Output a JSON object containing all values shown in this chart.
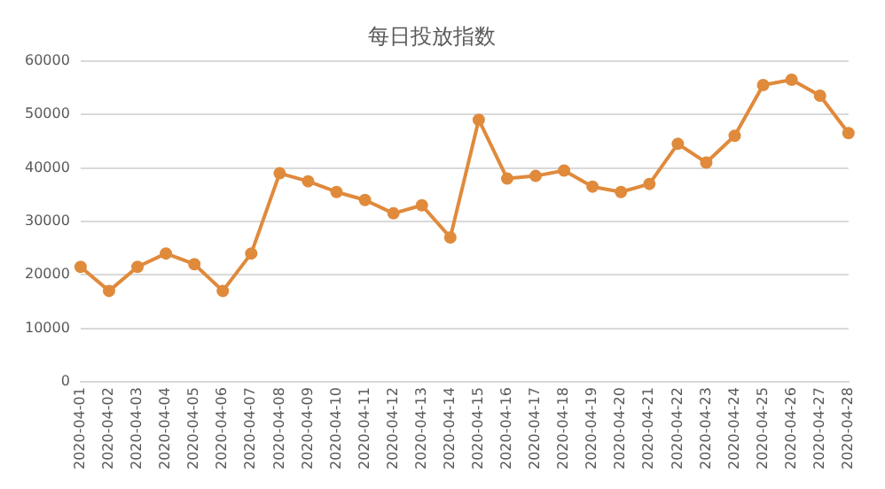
{
  "chart_data": {
    "type": "line",
    "title": "每日投放指数",
    "categories": [
      "2020-04-01",
      "2020-04-02",
      "2020-04-03",
      "2020-04-04",
      "2020-04-05",
      "2020-04-06",
      "2020-04-07",
      "2020-04-08",
      "2020-04-09",
      "2020-04-10",
      "2020-04-11",
      "2020-04-12",
      "2020-04-13",
      "2020-04-14",
      "2020-04-15",
      "2020-04-16",
      "2020-04-17",
      "2020-04-18",
      "2020-04-19",
      "2020-04-20",
      "2020-04-21",
      "2020-04-22",
      "2020-04-23",
      "2020-04-24",
      "2020-04-25",
      "2020-04-26",
      "2020-04-27",
      "2020-04-28"
    ],
    "series": [
      {
        "color": "#e08a3c",
        "values": [
          21500,
          17000,
          21500,
          24000,
          22000,
          17000,
          24000,
          39000,
          37500,
          35500,
          34000,
          31500,
          33000,
          27000,
          49000,
          38000,
          38500,
          39500,
          36500,
          35500,
          37000,
          44500,
          41000,
          46000,
          55500,
          56500,
          53500,
          46500
        ]
      }
    ],
    "ylim": [
      0,
      60000
    ],
    "yticks": [
      0,
      10000,
      20000,
      30000,
      40000,
      50000,
      60000
    ],
    "grid": "y",
    "marker": "circle",
    "line_style": "solid",
    "legend": false
  }
}
